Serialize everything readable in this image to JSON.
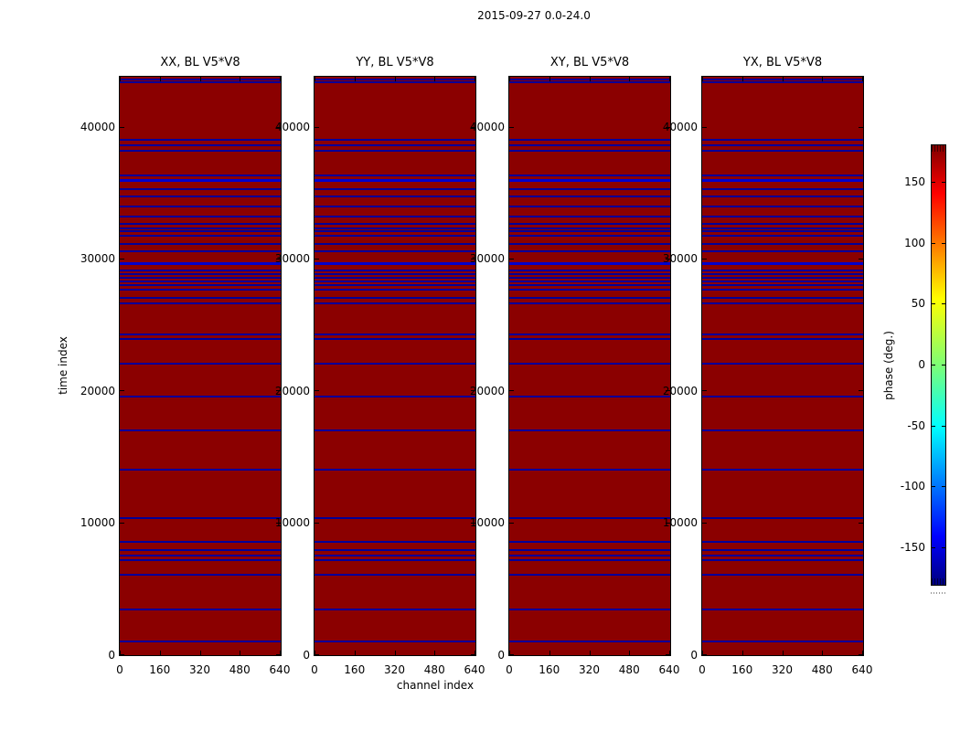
{
  "figure": {
    "title": "2015-09-27 0.0-24.0",
    "background": "#ffffff",
    "text_color": "#000000"
  },
  "chart_data": {
    "type": "heatmap",
    "title": "2015-09-27 0.0-24.0",
    "xlabel": "channel index",
    "ylabel": "time index",
    "panels": [
      {
        "title": "XX, BL V5*V8"
      },
      {
        "title": "YY, BL V5*V8"
      },
      {
        "title": "XY, BL V5*V8"
      },
      {
        "title": "YX, BL V5*V8"
      }
    ],
    "x_axis": {
      "ticks": [
        0,
        160,
        320,
        480,
        640
      ],
      "range": [
        0,
        640
      ]
    },
    "y_axis": {
      "ticks": [
        0,
        10000,
        20000,
        30000,
        40000
      ],
      "range": [
        0,
        43800
      ]
    },
    "colorbar": {
      "label": "phase (deg.)",
      "ticks": [
        150,
        100,
        50,
        0,
        -50,
        -100,
        -150
      ],
      "range": [
        -180,
        180
      ],
      "colormap": "jet"
    },
    "field_description": "uniform dark red field (phase near +180 deg) identical in all four panels, crossed by horizontal blue flagged rows",
    "field_color": "#8b0000",
    "line_color": "#000099",
    "thick_line_color": "#0000cd",
    "flagged_times": [
      1100,
      3520,
      6140,
      7240,
      7590,
      8000,
      8620,
      10430,
      14140,
      17100,
      19660,
      22160,
      24000,
      24350,
      26690,
      27150,
      27750,
      28070,
      28370,
      28670,
      28950,
      29220,
      29750,
      30670,
      31240,
      31860,
      32160,
      32390,
      32740,
      33310,
      34070,
      34810,
      35380,
      36070,
      36410,
      38260,
      38670,
      39120,
      43430,
      43650
    ],
    "thick_times": [
      29750,
      36070
    ]
  }
}
